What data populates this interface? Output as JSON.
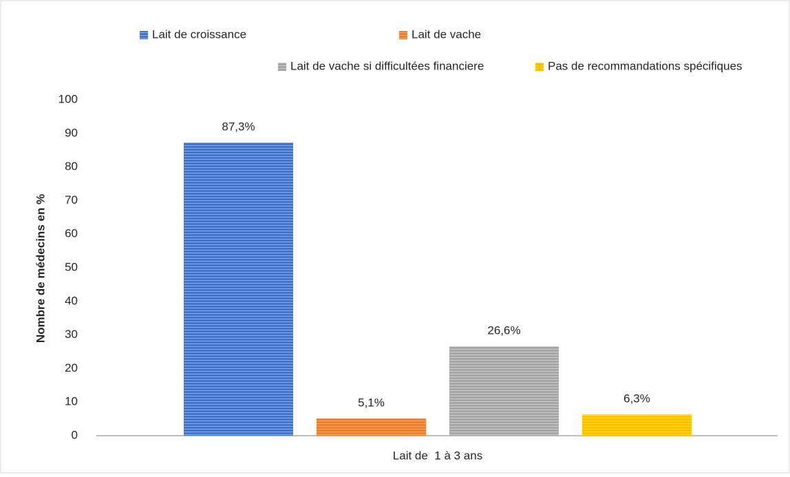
{
  "chart_data": {
    "type": "bar",
    "y_label": "Nombre de médecins en %",
    "categories": [
      "Lait de  1 à 3 ans"
    ],
    "series": [
      {
        "name": "Lait de croissance",
        "color": "#4472c4",
        "values": [
          87.3
        ],
        "value_labels": [
          "87,3%"
        ]
      },
      {
        "name": "Lait de vache",
        "color": "#ed7d31",
        "values": [
          5.1
        ],
        "value_labels": [
          "5,1%"
        ]
      },
      {
        "name": "Lait de vache si difficultées financiere",
        "color": "#a5a5a5",
        "values": [
          26.6
        ],
        "value_labels": [
          "26,6%"
        ]
      },
      {
        "name": "Pas de recommandations spécifiques",
        "color": "#ffc000",
        "values": [
          6.3
        ],
        "value_labels": [
          "6,3%"
        ]
      }
    ],
    "ylim": [
      0,
      100
    ],
    "yticks": [
      0,
      10,
      20,
      30,
      40,
      50,
      60,
      70,
      80,
      90,
      100
    ],
    "grid": false,
    "legend": "top"
  }
}
